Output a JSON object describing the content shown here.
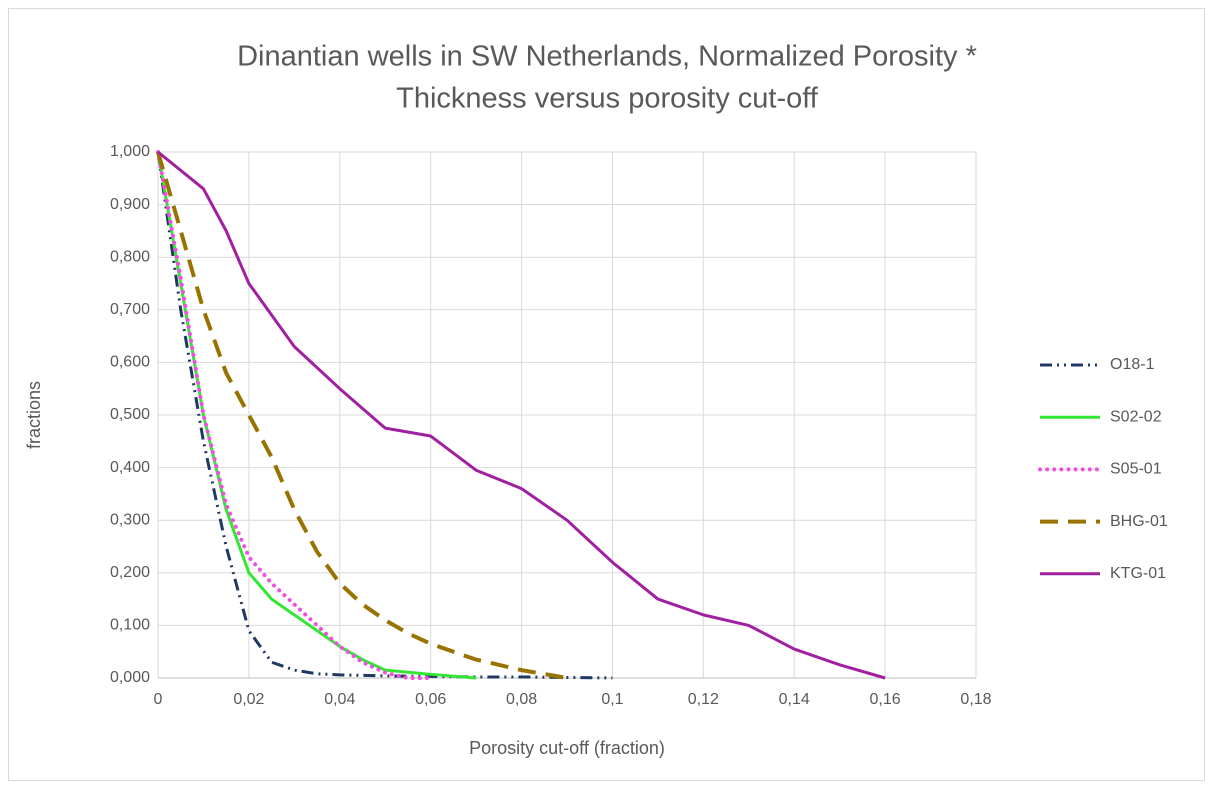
{
  "chart_data": {
    "type": "line",
    "title": [
      "Dinantian wells in SW Netherlands, Normalized Porosity *",
      "Thickness versus porosity cut-off"
    ],
    "x_label": "Porosity cut-off (fraction)",
    "y_label": "fractions",
    "xlim": [
      0,
      0.18
    ],
    "xticks": [
      0,
      {
        "value": 0.02,
        "label": "0,02"
      },
      {
        "value": 0.04,
        "label": "0,04"
      },
      {
        "value": 0.06,
        "label": "0,06"
      },
      {
        "value": 0.08,
        "label": "0,08"
      },
      {
        "value": 0.1,
        "label": "0,1"
      },
      {
        "value": 0.12,
        "label": "0,12"
      },
      {
        "value": 0.14,
        "label": "0,14"
      },
      {
        "value": 0.16,
        "label": "0,16"
      },
      {
        "value": 0.18,
        "label": "0,18"
      }
    ],
    "ylim": [
      0,
      1
    ],
    "yticks": [
      {
        "value": 0,
        "label": "0,000"
      },
      {
        "value": 0.1,
        "label": "0,100"
      },
      {
        "value": 0.2,
        "label": "0,200"
      },
      {
        "value": 0.3,
        "label": "0,300"
      },
      {
        "value": 0.4,
        "label": "0,400"
      },
      {
        "value": 0.5,
        "label": "0,500"
      },
      {
        "value": 0.6,
        "label": "0,600"
      },
      {
        "value": 0.7,
        "label": "0,700"
      },
      {
        "value": 0.8,
        "label": "0,800"
      },
      {
        "value": 0.9,
        "label": "0,900"
      },
      {
        "value": 1,
        "label": "1,000"
      }
    ],
    "grid": true,
    "legend": "right",
    "series": [
      {
        "name": "O18-1",
        "color": "#203864",
        "style": "dash-dot-dot",
        "x": [
          0,
          0.005,
          0.01,
          0.015,
          0.02,
          0.025,
          0.03,
          0.035,
          0.04,
          0.05,
          0.06,
          0.07,
          0.08,
          0.09,
          0.1
        ],
        "values": [
          1.0,
          0.7,
          0.45,
          0.25,
          0.09,
          0.03,
          0.015,
          0.008,
          0.006,
          0.004,
          0.003,
          0.002,
          0.002,
          0.001,
          0
        ]
      },
      {
        "name": "S02-02",
        "color": "#33e633",
        "style": "solid",
        "x": [
          0,
          0.005,
          0.01,
          0.015,
          0.02,
          0.025,
          0.03,
          0.035,
          0.04,
          0.045,
          0.05,
          0.06,
          0.07
        ],
        "values": [
          1.0,
          0.75,
          0.5,
          0.32,
          0.2,
          0.15,
          0.12,
          0.09,
          0.06,
          0.035,
          0.015,
          0.007,
          0
        ]
      },
      {
        "name": "S05-01",
        "color": "#f050e0",
        "style": "dotted",
        "x": [
          0,
          0.005,
          0.01,
          0.015,
          0.02,
          0.025,
          0.03,
          0.035,
          0.04,
          0.045,
          0.05,
          0.055,
          0.06
        ],
        "values": [
          1.0,
          0.76,
          0.5,
          0.33,
          0.23,
          0.18,
          0.14,
          0.1,
          0.06,
          0.03,
          0.01,
          0,
          0
        ]
      },
      {
        "name": "BHG-01",
        "color": "#997300",
        "style": "dashed",
        "x": [
          0,
          0.005,
          0.01,
          0.015,
          0.02,
          0.025,
          0.03,
          0.035,
          0.04,
          0.045,
          0.05,
          0.055,
          0.06,
          0.07,
          0.08,
          0.09
        ],
        "values": [
          1.0,
          0.85,
          0.7,
          0.58,
          0.5,
          0.42,
          0.32,
          0.24,
          0.18,
          0.14,
          0.11,
          0.085,
          0.065,
          0.035,
          0.015,
          0
        ]
      },
      {
        "name": "KTG-01",
        "color": "#a020a0",
        "style": "solid",
        "x": [
          0,
          0.01,
          0.015,
          0.02,
          0.03,
          0.04,
          0.05,
          0.06,
          0.07,
          0.08,
          0.09,
          0.1,
          0.11,
          0.12,
          0.13,
          0.14,
          0.15,
          0.16
        ],
        "values": [
          1.0,
          0.93,
          0.85,
          0.75,
          0.63,
          0.55,
          0.475,
          0.46,
          0.395,
          0.36,
          0.3,
          0.22,
          0.15,
          0.12,
          0.1,
          0.055,
          0.025,
          0
        ]
      }
    ]
  }
}
